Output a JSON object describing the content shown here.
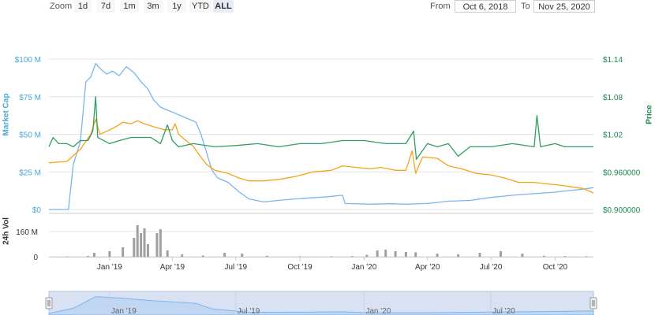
{
  "toolbar": {
    "zoom_label": "Zoom",
    "zoom_buttons": [
      "1d",
      "7d",
      "1m",
      "3m",
      "1y",
      "YTD",
      "ALL"
    ],
    "active_zoom": "ALL",
    "from_label": "From",
    "from_value": "Oct 6, 2018",
    "to_label": "To",
    "to_value": "Nov 25, 2020"
  },
  "colors": {
    "market_cap": "#7cb5ec",
    "price": "#2f9e62",
    "orange": "#f7a21b",
    "volume": "#a0a0a0",
    "market_cap_axis": "#4aa6d8",
    "price_axis": "#1a8a4c",
    "navigator_fill": "#d9e2f3"
  },
  "chart_data": [
    {
      "type": "line",
      "title": "",
      "ylabel": "Market Cap",
      "y2label": "Price",
      "xlim": [
        "2018-10-06",
        "2020-11-25"
      ],
      "ylim": [
        0,
        100000000
      ],
      "y2lim": [
        0.9,
        1.14
      ],
      "x_tick_labels": [
        "Jan '19",
        "Apr '19",
        "Jul '19",
        "Oct '19",
        "Jan '20",
        "Apr '20",
        "Jul '20",
        "Oct '20"
      ],
      "x_tick_dates": [
        "2019-01-01",
        "2019-04-01",
        "2019-07-01",
        "2019-10-01",
        "2020-01-01",
        "2020-04-01",
        "2020-07-01",
        "2020-10-01"
      ],
      "y_tick_labels": [
        "$0",
        "$25 M",
        "$50 M",
        "$75 M",
        "$100 M"
      ],
      "y_ticks": [
        0,
        25000000,
        50000000,
        75000000,
        100000000
      ],
      "y2_tick_labels": [
        "$0.900000",
        "$0.960000",
        "$1.02",
        "$1.08",
        "$1.14"
      ],
      "y2_ticks": [
        0.9,
        0.96,
        1.02,
        1.08,
        1.14
      ],
      "grid": true,
      "series": [
        {
          "name": "Market Cap",
          "axis": "left",
          "color_key": "market_cap",
          "points": [
            [
              "2018-10-06",
              0
            ],
            [
              "2018-11-03",
              0
            ],
            [
              "2018-11-10",
              30000000
            ],
            [
              "2018-11-20",
              45000000
            ],
            [
              "2018-11-28",
              85000000
            ],
            [
              "2018-12-05",
              88000000
            ],
            [
              "2018-12-12",
              97000000
            ],
            [
              "2018-12-20",
              93000000
            ],
            [
              "2018-12-28",
              90000000
            ],
            [
              "2019-01-05",
              92000000
            ],
            [
              "2019-01-15",
              89000000
            ],
            [
              "2019-01-25",
              95000000
            ],
            [
              "2019-02-05",
              91000000
            ],
            [
              "2019-02-15",
              85000000
            ],
            [
              "2019-02-25",
              80000000
            ],
            [
              "2019-03-05",
              73000000
            ],
            [
              "2019-03-15",
              68000000
            ],
            [
              "2019-03-25",
              66000000
            ],
            [
              "2019-04-05",
              64000000
            ],
            [
              "2019-04-15",
              62000000
            ],
            [
              "2019-04-25",
              60000000
            ],
            [
              "2019-05-05",
              58000000
            ],
            [
              "2019-05-12",
              50000000
            ],
            [
              "2019-05-20",
              38000000
            ],
            [
              "2019-05-28",
              26000000
            ],
            [
              "2019-06-05",
              21000000
            ],
            [
              "2019-06-20",
              18000000
            ],
            [
              "2019-07-05",
              12000000
            ],
            [
              "2019-07-20",
              7000000
            ],
            [
              "2019-08-10",
              5000000
            ],
            [
              "2019-09-10",
              6500000
            ],
            [
              "2019-10-10",
              7500000
            ],
            [
              "2019-11-10",
              8500000
            ],
            [
              "2019-12-01",
              9500000
            ],
            [
              "2019-12-05",
              4000000
            ],
            [
              "2020-01-10",
              3500000
            ],
            [
              "2020-02-10",
              3800000
            ],
            [
              "2020-03-01",
              3500000
            ],
            [
              "2020-04-01",
              4000000
            ],
            [
              "2020-05-01",
              5500000
            ],
            [
              "2020-06-01",
              6000000
            ],
            [
              "2020-07-01",
              8000000
            ],
            [
              "2020-08-01",
              9500000
            ],
            [
              "2020-09-01",
              10500000
            ],
            [
              "2020-10-01",
              11500000
            ],
            [
              "2020-10-20",
              12500000
            ],
            [
              "2020-11-10",
              13500000
            ],
            [
              "2020-11-25",
              14500000
            ]
          ]
        },
        {
          "name": "",
          "axis": "left",
          "color_key": "orange",
          "points": [
            [
              "2018-10-06",
              31000000
            ],
            [
              "2018-11-01",
              32000000
            ],
            [
              "2018-11-20",
              40000000
            ],
            [
              "2018-12-05",
              50000000
            ],
            [
              "2018-12-12",
              60000000
            ],
            [
              "2018-12-18",
              50000000
            ],
            [
              "2018-12-28",
              52000000
            ],
            [
              "2019-01-10",
              55000000
            ],
            [
              "2019-01-20",
              58000000
            ],
            [
              "2019-02-01",
              57000000
            ],
            [
              "2019-02-10",
              59000000
            ],
            [
              "2019-02-20",
              57000000
            ],
            [
              "2019-03-05",
              55000000
            ],
            [
              "2019-03-20",
              53000000
            ],
            [
              "2019-04-01",
              53000000
            ],
            [
              "2019-04-05",
              57000000
            ],
            [
              "2019-04-10",
              50000000
            ],
            [
              "2019-04-20",
              46000000
            ],
            [
              "2019-05-01",
              42000000
            ],
            [
              "2019-05-10",
              36000000
            ],
            [
              "2019-05-20",
              30000000
            ],
            [
              "2019-06-01",
              26000000
            ],
            [
              "2019-06-20",
              24000000
            ],
            [
              "2019-07-05",
              21000000
            ],
            [
              "2019-07-20",
              19000000
            ],
            [
              "2019-08-10",
              19000000
            ],
            [
              "2019-09-01",
              20000000
            ],
            [
              "2019-09-25",
              22000000
            ],
            [
              "2019-10-20",
              25000000
            ],
            [
              "2019-11-15",
              26000000
            ],
            [
              "2019-12-01",
              29000000
            ],
            [
              "2019-12-20",
              28000000
            ],
            [
              "2020-01-10",
              27000000
            ],
            [
              "2020-01-25",
              28000000
            ],
            [
              "2020-02-15",
              26000000
            ],
            [
              "2020-03-01",
              26000000
            ],
            [
              "2020-03-10",
              39000000
            ],
            [
              "2020-03-15",
              24000000
            ],
            [
              "2020-03-25",
              35000000
            ],
            [
              "2020-04-15",
              34000000
            ],
            [
              "2020-05-01",
              29000000
            ],
            [
              "2020-05-20",
              27000000
            ],
            [
              "2020-06-10",
              24000000
            ],
            [
              "2020-07-01",
              23000000
            ],
            [
              "2020-07-20",
              21000000
            ],
            [
              "2020-08-10",
              18000000
            ],
            [
              "2020-09-01",
              18000000
            ],
            [
              "2020-09-20",
              17000000
            ],
            [
              "2020-10-10",
              16000000
            ],
            [
              "2020-10-25",
              15000000
            ],
            [
              "2020-11-10",
              14000000
            ],
            [
              "2020-11-25",
              11000000
            ]
          ]
        },
        {
          "name": "Price",
          "axis": "right",
          "color_key": "price",
          "points": [
            [
              "2018-10-06",
              1.0
            ],
            [
              "2018-10-12",
              1.015
            ],
            [
              "2018-10-20",
              1.005
            ],
            [
              "2018-11-01",
              1.005
            ],
            [
              "2018-11-10",
              1.0
            ],
            [
              "2018-11-20",
              1.01
            ],
            [
              "2018-12-01",
              1.01
            ],
            [
              "2018-12-08",
              1.025
            ],
            [
              "2018-12-12",
              1.08
            ],
            [
              "2018-12-15",
              1.015
            ],
            [
              "2019-01-01",
              1.005
            ],
            [
              "2019-01-15",
              1.01
            ],
            [
              "2019-02-01",
              1.015
            ],
            [
              "2019-02-15",
              1.015
            ],
            [
              "2019-03-01",
              1.015
            ],
            [
              "2019-03-15",
              1.005
            ],
            [
              "2019-03-25",
              1.035
            ],
            [
              "2019-04-01",
              1.01
            ],
            [
              "2019-04-10",
              1.0
            ],
            [
              "2019-05-01",
              1.005
            ],
            [
              "2019-06-01",
              1.0
            ],
            [
              "2019-07-01",
              1.002
            ],
            [
              "2019-08-01",
              1.005
            ],
            [
              "2019-09-01",
              1.0
            ],
            [
              "2019-10-01",
              1.005
            ],
            [
              "2019-11-01",
              1.005
            ],
            [
              "2019-12-01",
              1.01
            ],
            [
              "2020-01-01",
              1.01
            ],
            [
              "2020-02-01",
              1.005
            ],
            [
              "2020-03-01",
              1.005
            ],
            [
              "2020-03-12",
              1.025
            ],
            [
              "2020-03-16",
              0.98
            ],
            [
              "2020-04-01",
              1.005
            ],
            [
              "2020-04-15",
              1.0
            ],
            [
              "2020-05-01",
              1.005
            ],
            [
              "2020-05-15",
              0.985
            ],
            [
              "2020-06-01",
              1.0
            ],
            [
              "2020-07-01",
              1.0
            ],
            [
              "2020-08-01",
              1.005
            ],
            [
              "2020-09-01",
              1.0
            ],
            [
              "2020-09-05",
              1.05
            ],
            [
              "2020-09-10",
              1.0
            ],
            [
              "2020-10-01",
              1.005
            ],
            [
              "2020-10-15",
              1.0
            ],
            [
              "2020-11-01",
              1.0
            ],
            [
              "2020-11-25",
              1.0
            ]
          ]
        }
      ]
    },
    {
      "type": "bar",
      "title": "",
      "ylabel": "24h Vol",
      "ylim": [
        0,
        220000000
      ],
      "y_tick_labels": [
        "0",
        "160 M"
      ],
      "y_ticks": [
        0,
        160000000
      ],
      "series": [
        {
          "name": "24h Vol",
          "color_key": "volume",
          "points": [
            [
              "2018-11-01",
              2000000
            ],
            [
              "2018-12-01",
              5000000
            ],
            [
              "2018-12-10",
              25000000
            ],
            [
              "2019-01-01",
              35000000
            ],
            [
              "2019-01-20",
              60000000
            ],
            [
              "2019-02-05",
              120000000
            ],
            [
              "2019-02-10",
              200000000
            ],
            [
              "2019-02-15",
              150000000
            ],
            [
              "2019-02-20",
              180000000
            ],
            [
              "2019-02-25",
              80000000
            ],
            [
              "2019-03-10",
              150000000
            ],
            [
              "2019-03-15",
              175000000
            ],
            [
              "2019-03-25",
              40000000
            ],
            [
              "2019-04-15",
              15000000
            ],
            [
              "2019-05-15",
              8000000
            ],
            [
              "2019-06-15",
              25000000
            ],
            [
              "2019-07-10",
              20000000
            ],
            [
              "2019-08-15",
              6000000
            ],
            [
              "2019-10-01",
              3000000
            ],
            [
              "2019-11-15",
              3000000
            ],
            [
              "2019-12-15",
              4000000
            ],
            [
              "2020-01-05",
              12000000
            ],
            [
              "2020-01-20",
              40000000
            ],
            [
              "2020-02-01",
              45000000
            ],
            [
              "2020-02-15",
              35000000
            ],
            [
              "2020-03-01",
              30000000
            ],
            [
              "2020-03-15",
              28000000
            ],
            [
              "2020-04-15",
              20000000
            ],
            [
              "2020-05-15",
              15000000
            ],
            [
              "2020-06-15",
              25000000
            ],
            [
              "2020-07-15",
              35000000
            ],
            [
              "2020-08-15",
              20000000
            ],
            [
              "2020-09-15",
              6000000
            ],
            [
              "2020-10-15",
              4000000
            ],
            [
              "2020-11-15",
              3000000
            ]
          ]
        }
      ]
    },
    {
      "type": "area",
      "title": "",
      "x_tick_labels": [
        "Jan '19",
        "Jul '19",
        "Jan '20",
        "Jul '20"
      ],
      "x_tick_dates": [
        "2019-01-01",
        "2019-07-01",
        "2020-01-01",
        "2020-07-01"
      ],
      "series": [
        {
          "name": "",
          "color_key": "market_cap",
          "points": [
            [
              "2018-10-06",
              0
            ],
            [
              "2018-11-10",
              30000000
            ],
            [
              "2018-12-12",
              97000000
            ],
            [
              "2019-01-15",
              89000000
            ],
            [
              "2019-03-05",
              73000000
            ],
            [
              "2019-05-05",
              58000000
            ],
            [
              "2019-05-28",
              26000000
            ],
            [
              "2019-07-20",
              7000000
            ],
            [
              "2019-10-10",
              7500000
            ],
            [
              "2019-12-01",
              9500000
            ],
            [
              "2020-01-10",
              3500000
            ],
            [
              "2020-04-01",
              4000000
            ],
            [
              "2020-07-01",
              8000000
            ],
            [
              "2020-10-01",
              11500000
            ],
            [
              "2020-11-25",
              14500000
            ]
          ]
        }
      ]
    }
  ]
}
